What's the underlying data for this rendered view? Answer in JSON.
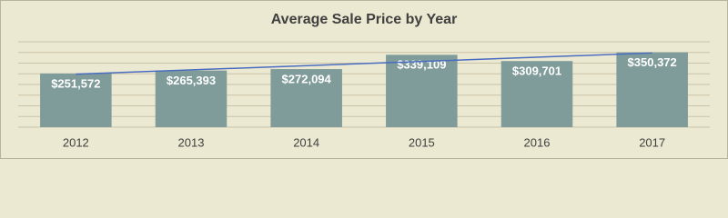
{
  "chart_data": {
    "type": "bar",
    "title": "Average Sale Price by Year",
    "categories": [
      "2012",
      "2013",
      "2014",
      "2015",
      "2016",
      "2017"
    ],
    "values": [
      251572,
      265393,
      272094,
      339109,
      309701,
      350372
    ],
    "value_labels": [
      "$251,572",
      "$265,393",
      "$272,094",
      "$339,109",
      "$309,701",
      "$350,372"
    ],
    "color": "#7f9c9a",
    "ylim": [
      0,
      400000
    ],
    "yticks": [
      0,
      50000,
      100000,
      150000,
      200000,
      250000,
      300000,
      350000,
      400000
    ],
    "grid": true,
    "trendline": true,
    "trendline_color": "#4a6cc0"
  }
}
